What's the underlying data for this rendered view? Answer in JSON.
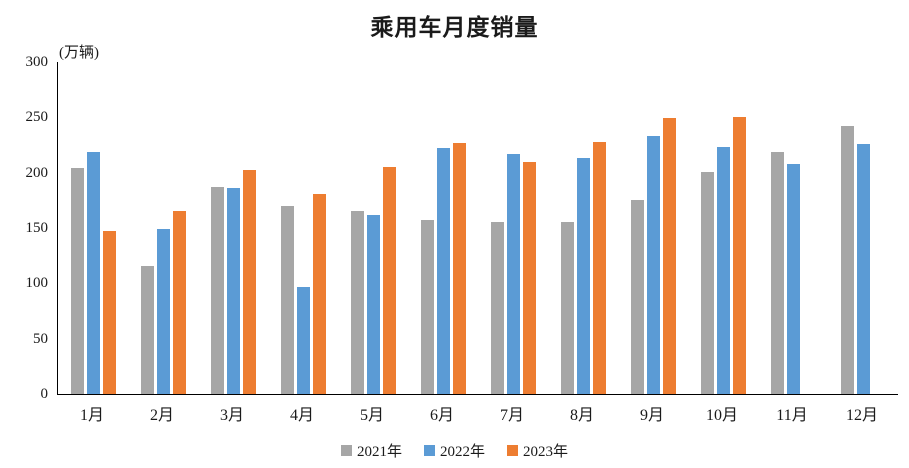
{
  "chart_data": {
    "type": "bar",
    "title": "乘用车月度销量",
    "unit_label": "(万辆)",
    "categories": [
      "1月",
      "2月",
      "3月",
      "4月",
      "5月",
      "6月",
      "7月",
      "8月",
      "9月",
      "10月",
      "11月",
      "12月"
    ],
    "series": [
      {
        "name": "2021年",
        "color": "#A6A6A6",
        "values": [
          204,
          116,
          187,
          170,
          165,
          157,
          155,
          155,
          175,
          201,
          219,
          242
        ]
      },
      {
        "name": "2022年",
        "color": "#5B9BD5",
        "values": [
          219,
          149,
          186,
          97,
          162,
          222,
          217,
          213,
          233,
          223,
          208,
          226
        ]
      },
      {
        "name": "2023年",
        "color": "#ED7D31",
        "values": [
          147,
          165,
          202,
          181,
          205,
          227,
          210,
          228,
          249,
          250,
          null,
          null
        ]
      }
    ],
    "ylim": [
      0,
      300
    ],
    "yticks": [
      0,
      50,
      100,
      150,
      200,
      250,
      300
    ],
    "grid": false,
    "legend_position": "bottom",
    "axis_color": "#000000",
    "background_color": "#FFFFFF"
  }
}
